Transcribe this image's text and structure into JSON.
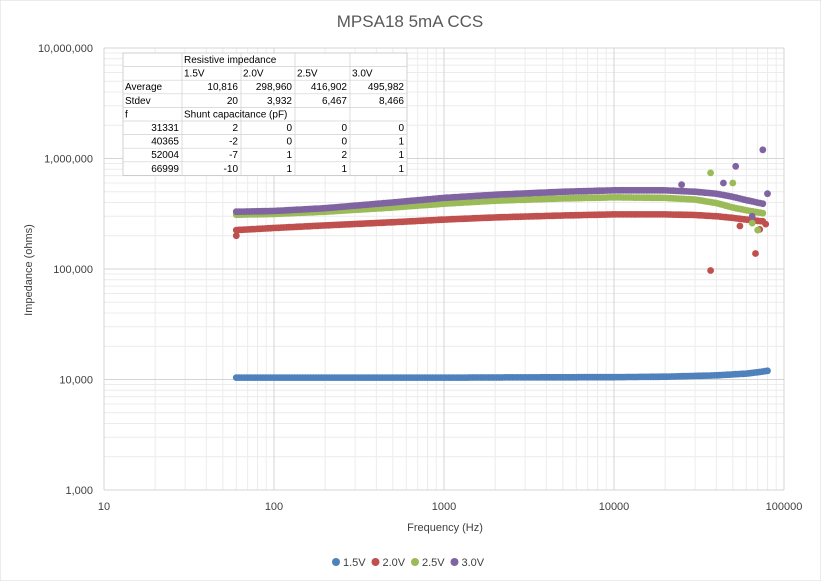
{
  "chart_data": {
    "type": "scatter",
    "title": "MPSA18 5mA CCS",
    "xlabel": "Frequency (Hz)",
    "ylabel": "Impedance (ohms)",
    "x_scale": "log",
    "y_scale": "log",
    "xlim": [
      10,
      100000
    ],
    "ylim": [
      1000,
      10000000
    ],
    "x_ticks": [
      "10",
      "100",
      "1000",
      "10000",
      "100000"
    ],
    "y_ticks": [
      "1,000",
      "10,000",
      "100,000",
      "1,000,000",
      "10,000,000"
    ],
    "grid": true,
    "legend_position": "bottom",
    "series": [
      {
        "name": "1.5V",
        "color": "#4f81bd",
        "points": [
          [
            60,
            10400
          ],
          [
            100,
            10400
          ],
          [
            300,
            10400
          ],
          [
            1000,
            10400
          ],
          [
            3000,
            10450
          ],
          [
            10000,
            10500
          ],
          [
            20000,
            10600
          ],
          [
            40000,
            10900
          ],
          [
            60000,
            11300
          ],
          [
            75000,
            11800
          ],
          [
            80000,
            12000
          ]
        ],
        "outliers": []
      },
      {
        "name": "2.0V",
        "color": "#c0504d",
        "points": [
          [
            60,
            225000
          ],
          [
            100,
            235000
          ],
          [
            200,
            248000
          ],
          [
            500,
            265000
          ],
          [
            1000,
            280000
          ],
          [
            2000,
            293000
          ],
          [
            5000,
            305000
          ],
          [
            10000,
            312000
          ],
          [
            20000,
            312000
          ],
          [
            30000,
            308000
          ],
          [
            40000,
            300000
          ],
          [
            50000,
            290000
          ],
          [
            60000,
            280000
          ],
          [
            75000,
            270000
          ]
        ],
        "outliers": [
          [
            60,
            200000
          ],
          [
            37000,
            97000
          ],
          [
            68000,
            138000
          ],
          [
            55000,
            245000
          ],
          [
            72000,
            228000
          ],
          [
            78000,
            255000
          ]
        ]
      },
      {
        "name": "2.5V",
        "color": "#9bbb59",
        "points": [
          [
            60,
            310000
          ],
          [
            100,
            315000
          ],
          [
            200,
            330000
          ],
          [
            500,
            360000
          ],
          [
            1000,
            390000
          ],
          [
            2000,
            415000
          ],
          [
            5000,
            435000
          ],
          [
            10000,
            445000
          ],
          [
            20000,
            440000
          ],
          [
            30000,
            425000
          ],
          [
            40000,
            395000
          ],
          [
            50000,
            360000
          ],
          [
            60000,
            340000
          ],
          [
            75000,
            320000
          ]
        ],
        "outliers": [
          [
            37000,
            740000
          ],
          [
            50000,
            600000
          ],
          [
            70000,
            225000
          ],
          [
            65000,
            260000
          ]
        ]
      },
      {
        "name": "3.0V",
        "color": "#8064a2",
        "points": [
          [
            60,
            330000
          ],
          [
            100,
            335000
          ],
          [
            200,
            355000
          ],
          [
            500,
            400000
          ],
          [
            1000,
            440000
          ],
          [
            2000,
            470000
          ],
          [
            5000,
            500000
          ],
          [
            10000,
            515000
          ],
          [
            20000,
            515000
          ],
          [
            30000,
            500000
          ],
          [
            40000,
            480000
          ],
          [
            50000,
            450000
          ],
          [
            60000,
            420000
          ],
          [
            75000,
            390000
          ]
        ],
        "outliers": [
          [
            75000,
            1200000
          ],
          [
            52000,
            850000
          ],
          [
            44000,
            600000
          ],
          [
            80000,
            480000
          ],
          [
            65000,
            300000
          ],
          [
            25000,
            580000
          ]
        ]
      }
    ],
    "table": {
      "header_title": "Resistive impedance",
      "columns": [
        "1.5V",
        "2.0V",
        "2.5V",
        "3.0V"
      ],
      "rows": [
        {
          "label": "Average",
          "values": [
            "10,816",
            "298,960",
            "416,902",
            "495,982"
          ]
        },
        {
          "label": "Stdev",
          "values": [
            "20",
            "3,932",
            "6,467",
            "8,466"
          ]
        }
      ],
      "shunt_label": "f",
      "shunt_title": "Shunt capacitance (pF)",
      "shunt_rows": [
        {
          "label": "31331",
          "values": [
            "2",
            "0",
            "0",
            "0"
          ]
        },
        {
          "label": "40365",
          "values": [
            "-2",
            "0",
            "0",
            "1"
          ]
        },
        {
          "label": "52004",
          "values": [
            "-7",
            "1",
            "2",
            "1"
          ]
        },
        {
          "label": "66999",
          "values": [
            "-10",
            "1",
            "1",
            "1"
          ]
        }
      ]
    }
  }
}
